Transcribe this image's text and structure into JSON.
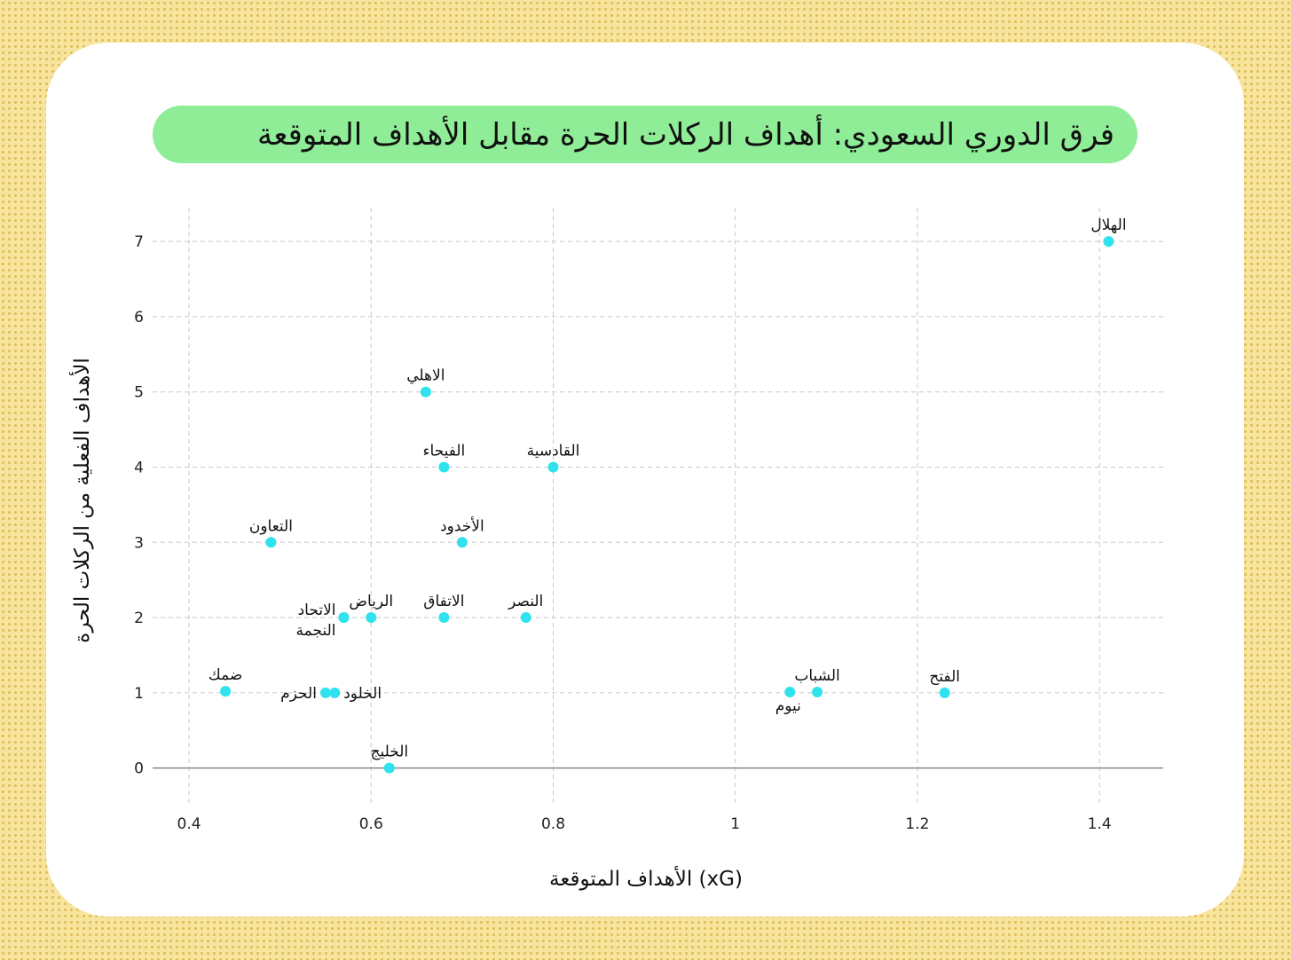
{
  "title": "فرق الدوري السعودي: أهداف الركلات الحرة مقابل الأهداف المتوقعة",
  "colors": {
    "background": "#f8e49c",
    "title_bg": "#8fec97",
    "point": "#2fe2ee",
    "grid": "#c8c8c8"
  },
  "chart_data": {
    "type": "scatter",
    "title": "فرق الدوري السعودي: أهداف الركلات الحرة مقابل الأهداف المتوقعة",
    "xlabel": "الأهداف المتوقعة (xG)",
    "ylabel": "الأهداف الفعلية من الركلات الحرة",
    "xlim": [
      0.36,
      1.47
    ],
    "ylim": [
      -0.5,
      7.45
    ],
    "xticks": [
      0.4,
      0.6,
      0.8,
      1,
      1.2,
      1.4
    ],
    "xtick_labels": [
      "0.4",
      "0.6",
      "0.8",
      "1",
      "1.2",
      "1.4"
    ],
    "yticks": [
      0,
      1,
      2,
      3,
      4,
      5,
      6,
      7
    ],
    "ytick_labels": [
      "0",
      "1",
      "2",
      "3",
      "4",
      "5",
      "6",
      "7"
    ],
    "grid": true,
    "points": [
      {
        "label": "الهلال",
        "x": 1.41,
        "y": 7,
        "label_pos": "above"
      },
      {
        "label": "الاهلي",
        "x": 0.66,
        "y": 5,
        "label_pos": "above"
      },
      {
        "label": "الفيحاء",
        "x": 0.68,
        "y": 4,
        "label_pos": "above"
      },
      {
        "label": "القادسية",
        "x": 0.8,
        "y": 4,
        "label_pos": "above"
      },
      {
        "label": "التعاون",
        "x": 0.49,
        "y": 3,
        "label_pos": "above"
      },
      {
        "label": "الأخدود",
        "x": 0.7,
        "y": 3,
        "label_pos": "above"
      },
      {
        "label": "الاتحاد",
        "x": 0.57,
        "y": 2,
        "label_pos": "left-high"
      },
      {
        "label": "النجمة",
        "x": 0.57,
        "y": 2,
        "label_pos": "left-low"
      },
      {
        "label": "الرياض",
        "x": 0.6,
        "y": 2,
        "label_pos": "above"
      },
      {
        "label": "الاتفاق",
        "x": 0.68,
        "y": 2,
        "label_pos": "above"
      },
      {
        "label": "النصر",
        "x": 0.77,
        "y": 2,
        "label_pos": "above"
      },
      {
        "label": "ضمك",
        "x": 0.44,
        "y": 1.02,
        "label_pos": "above"
      },
      {
        "label": "الحزم",
        "x": 0.55,
        "y": 1,
        "label_pos": "left"
      },
      {
        "label": "الخلود",
        "x": 0.56,
        "y": 1,
        "label_pos": "right"
      },
      {
        "label": "نيوم",
        "x": 1.06,
        "y": 1.01,
        "label_pos": "below"
      },
      {
        "label": "الشباب",
        "x": 1.09,
        "y": 1.01,
        "label_pos": "above"
      },
      {
        "label": "الفتح",
        "x": 1.23,
        "y": 1,
        "label_pos": "above"
      },
      {
        "label": "الخليج",
        "x": 0.62,
        "y": 0,
        "label_pos": "above"
      }
    ]
  }
}
